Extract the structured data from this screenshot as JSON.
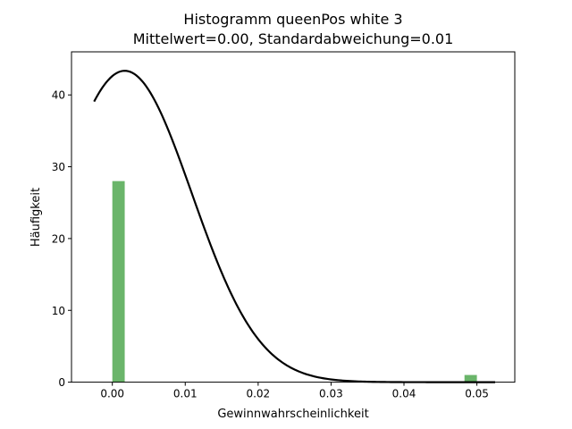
{
  "chart_data": {
    "type": "bar",
    "title_line1": "Histogramm queenPos white 3",
    "title_line2": "Mittelwert=0.00, Standardabweichung=0.01",
    "xlabel": "Gewinnwahrscheinlichkeit",
    "ylabel": "Häufigkeit",
    "xlim": [
      -0.0056,
      0.0552
    ],
    "ylim": [
      0,
      46
    ],
    "x_ticks": [
      0.0,
      0.01,
      0.02,
      0.03,
      0.04,
      0.05
    ],
    "x_tick_labels": [
      "0.00",
      "0.01",
      "0.02",
      "0.03",
      "0.04",
      "0.05"
    ],
    "y_ticks": [
      0,
      10,
      20,
      30,
      40
    ],
    "y_tick_labels": [
      "0",
      "10",
      "20",
      "30",
      "40"
    ],
    "histogram": {
      "color": "#6ab56a",
      "bins": [
        {
          "x0": 0.0,
          "x1": 0.0017,
          "count": 28
        },
        {
          "x0": 0.0483,
          "x1": 0.05,
          "count": 1
        }
      ]
    },
    "density_curve": {
      "color": "#000000",
      "mean": 0.0017,
      "std": 0.0092,
      "x_start": -0.0025,
      "x_end": 0.0525
    }
  }
}
